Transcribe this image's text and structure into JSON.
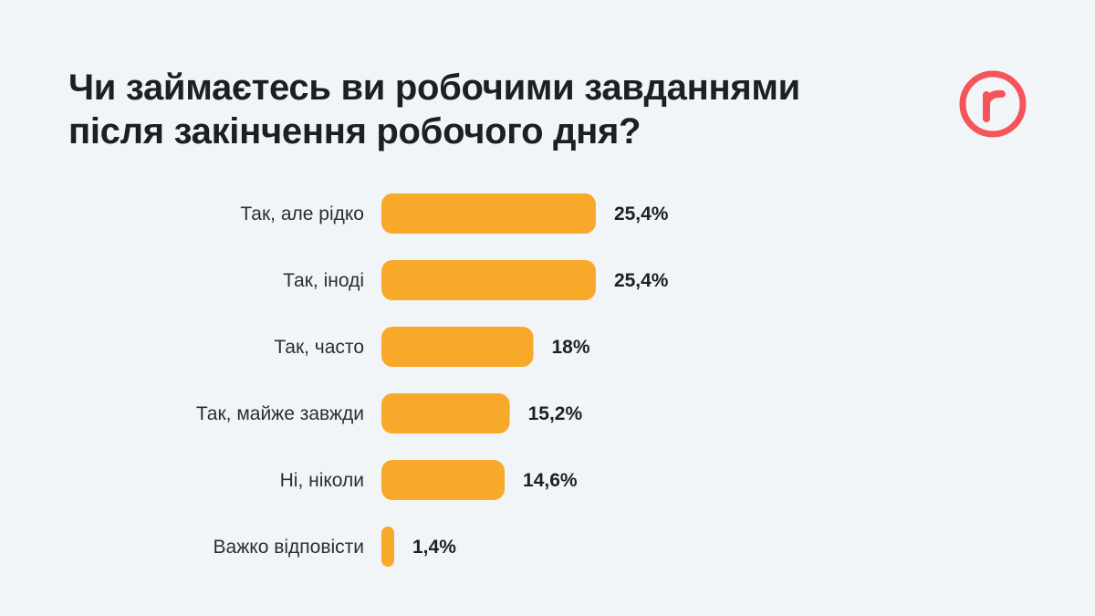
{
  "logo_icon": "roboty-r-logo-icon",
  "chart_data": {
    "type": "bar",
    "orientation": "horizontal",
    "title": "Чи займаєтесь ви робочими завданнями після закінчення робочого дня?",
    "categories": [
      "Так, але рідко",
      "Так, іноді",
      "Так, часто",
      "Так, майже завжди",
      "Ні, ніколи",
      "Важко відповісти"
    ],
    "values": [
      25.4,
      25.4,
      18,
      15.2,
      14.6,
      1.4
    ],
    "value_labels": [
      "25,4%",
      "25,4%",
      "18%",
      "15,2%",
      "14,6%",
      "1,4%"
    ],
    "unit": "%",
    "bar_color": "#f8a92a",
    "accent_color": "#f5545a",
    "grid": false,
    "legend": "none"
  }
}
